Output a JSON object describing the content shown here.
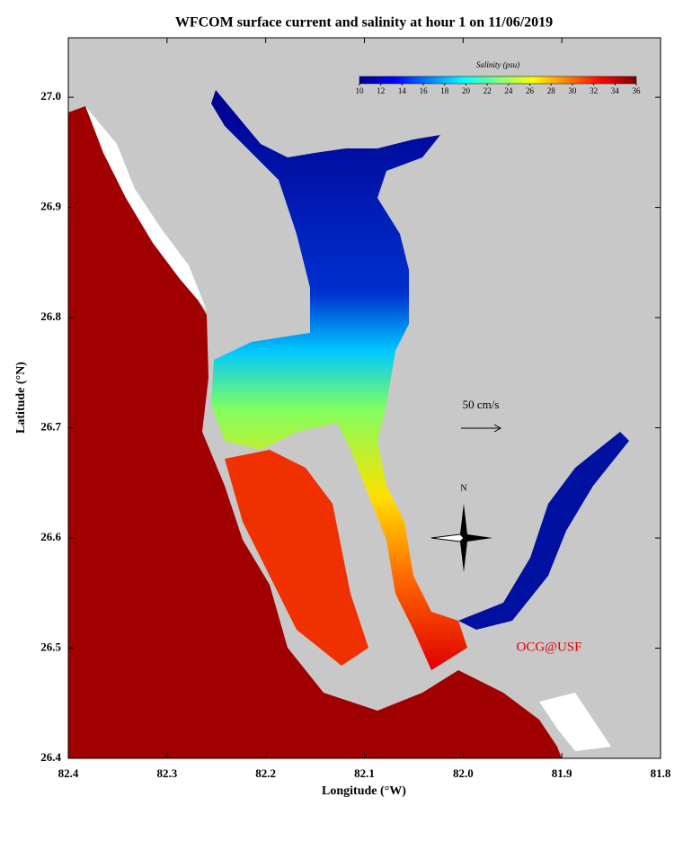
{
  "map": {
    "title": "WFCOM surface current and salinity at hour 1 on 11/06/2019",
    "xlabel": "Longitude (°W)",
    "ylabel": "Latitude (°N)",
    "xlim": [
      82.4,
      81.8
    ],
    "ylim": [
      26.4,
      27.054
    ],
    "xticks": [
      82.4,
      82.3,
      82.2,
      82.1,
      {
        "value": 82.0,
        "label": "82.0"
      },
      81.9,
      81.8
    ],
    "yticks": [
      26.4,
      26.5,
      26.6,
      26.7,
      26.8,
      26.9,
      {
        "value": 27.0,
        "label": "27.0"
      }
    ],
    "colorbar": {
      "label": "Salinity (psu)",
      "lim": [
        10,
        36
      ],
      "ticks": [
        10,
        12,
        14,
        16,
        18,
        20,
        22,
        24,
        26,
        28,
        30,
        32,
        34,
        36
      ],
      "colors": [
        "#00008f",
        "#0000ff",
        "#0080ff",
        "#00ffff",
        "#80ff80",
        "#ffff00",
        "#ff8000",
        "#ff0000",
        "#800000"
      ]
    },
    "scale_label": "50 cm/s",
    "north_label": "N",
    "credit": "OCG@USF"
  }
}
